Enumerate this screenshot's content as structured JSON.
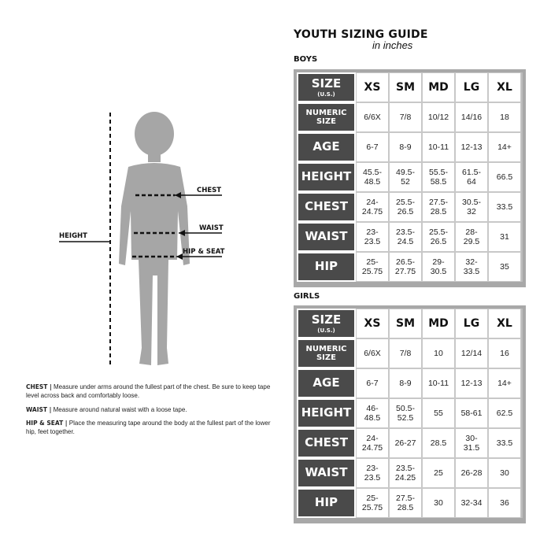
{
  "title": "YOUTH SIZING GUIDE",
  "subtitle": "in inches",
  "figure": {
    "height": "HEIGHT",
    "chest": "CHEST",
    "waist": "WAIST",
    "hip": "HIP & SEAT",
    "silhouette_color": "#a6a6a6"
  },
  "notes": [
    {
      "term": "CHEST |",
      "text": " Measure under arms around the fullest part of the chest. Be sure to keep tape level across back and comfortably loose."
    },
    {
      "term": "WAIST |",
      "text": " Measure around natural waist with a loose tape."
    },
    {
      "term": "HIP & SEAT |",
      "text": " Place the measuring tape around the body at the fullest part of the lower hip, feet together."
    }
  ],
  "tables": [
    {
      "section": "BOYS",
      "header": {
        "label": "SIZE",
        "sub": "(U.S.)"
      },
      "columns": [
        "XS",
        "SM",
        "MD",
        "LG",
        "XL"
      ],
      "rows": [
        {
          "label": "NUMERIC SIZE",
          "values": [
            "6/6X",
            "7/8",
            "10/12",
            "14/16",
            "18"
          ]
        },
        {
          "label": "AGE",
          "values": [
            "6-7",
            "8-9",
            "10-11",
            "12-13",
            "14+"
          ]
        },
        {
          "label": "HEIGHT",
          "values": [
            "45.5-48.5",
            "49.5-52",
            "55.5-58.5",
            "61.5-64",
            "66.5"
          ]
        },
        {
          "label": "CHEST",
          "values": [
            "24-24.75",
            "25.5-26.5",
            "27.5-28.5",
            "30.5-32",
            "33.5"
          ]
        },
        {
          "label": "WAIST",
          "values": [
            "23-23.5",
            "23.5-24.5",
            "25.5-26.5",
            "28-29.5",
            "31"
          ]
        },
        {
          "label": "HIP",
          "values": [
            "25-25.75",
            "26.5-27.75",
            "29-30.5",
            "32-33.5",
            "35"
          ]
        }
      ]
    },
    {
      "section": "GIRLS",
      "header": {
        "label": "SIZE",
        "sub": "(U.S.)"
      },
      "columns": [
        "XS",
        "SM",
        "MD",
        "LG",
        "XL"
      ],
      "rows": [
        {
          "label": "NUMERIC SIZE",
          "values": [
            "6/6X",
            "7/8",
            "10",
            "12/14",
            "16"
          ]
        },
        {
          "label": "AGE",
          "values": [
            "6-7",
            "8-9",
            "10-11",
            "12-13",
            "14+"
          ]
        },
        {
          "label": "HEIGHT",
          "values": [
            "46-48.5",
            "50.5-52.5",
            "55",
            "58-61",
            "62.5"
          ]
        },
        {
          "label": "CHEST",
          "values": [
            "24-24.75",
            "26-27",
            "28.5",
            "30-31.5",
            "33.5"
          ]
        },
        {
          "label": "WAIST",
          "values": [
            "23-23.5",
            "23.5-24.25",
            "25",
            "26-28",
            "30"
          ]
        },
        {
          "label": "HIP",
          "values": [
            "25-25.75",
            "27.5-28.5",
            "30",
            "32-34",
            "36"
          ]
        }
      ]
    }
  ]
}
